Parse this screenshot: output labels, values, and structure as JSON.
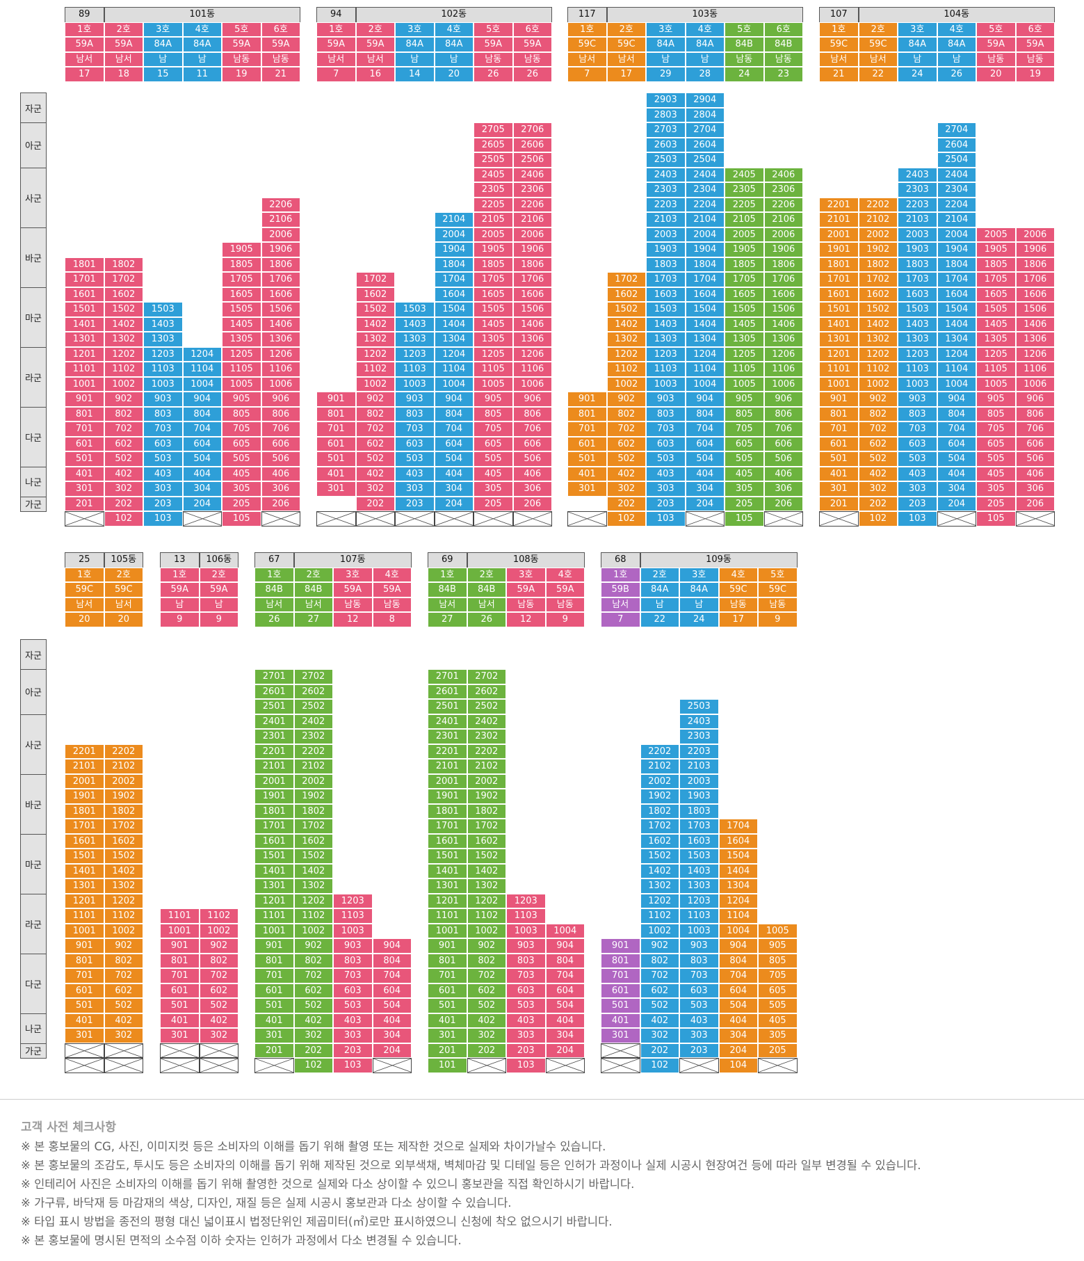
{
  "colors": {
    "pink": "#e8567a",
    "blue": "#2e9fd8",
    "orange": "#ec8b1d",
    "green": "#6cb33e",
    "purple": "#b066c2"
  },
  "grade_labels": [
    "자군",
    "아군",
    "사군",
    "바군",
    "마군",
    "라군",
    "다군",
    "나군",
    "가군"
  ],
  "buildings": [
    {
      "name": "101동",
      "count": "89",
      "units": [
        {
          "ho": "1호",
          "type": "59A",
          "dir": "남서",
          "cnt": "17",
          "color": "pink",
          "top": 18,
          "bottom": 2,
          "ground": "X"
        },
        {
          "ho": "2호",
          "type": "59A",
          "dir": "남서",
          "cnt": "18",
          "color": "pink",
          "top": 18,
          "bottom": 2,
          "ground": "102"
        },
        {
          "ho": "3호",
          "type": "84A",
          "dir": "남",
          "cnt": "15",
          "color": "blue",
          "top": 15,
          "bottom": 2,
          "ground": "103"
        },
        {
          "ho": "4호",
          "type": "84A",
          "dir": "남",
          "cnt": "11",
          "color": "blue",
          "top": 12,
          "bottom": 2,
          "ground": "X"
        },
        {
          "ho": "5호",
          "type": "59A",
          "dir": "남동",
          "cnt": "19",
          "color": "pink",
          "top": 19,
          "bottom": 2,
          "ground": "105"
        },
        {
          "ho": "6호",
          "type": "59A",
          "dir": "남동",
          "cnt": "21",
          "color": "pink",
          "top": 22,
          "bottom": 2,
          "ground": "X"
        }
      ]
    },
    {
      "name": "102동",
      "count": "94",
      "units": [
        {
          "ho": "1호",
          "type": "59A",
          "dir": "남서",
          "cnt": "7",
          "color": "pink",
          "top": 9,
          "bottom": 3,
          "ground": "X"
        },
        {
          "ho": "2호",
          "type": "59A",
          "dir": "남서",
          "cnt": "16",
          "color": "pink",
          "top": 17,
          "bottom": 2,
          "ground": "X"
        },
        {
          "ho": "3호",
          "type": "84A",
          "dir": "남",
          "cnt": "14",
          "color": "blue",
          "top": 15,
          "bottom": 2,
          "ground": "X"
        },
        {
          "ho": "4호",
          "type": "84A",
          "dir": "남",
          "cnt": "20",
          "color": "blue",
          "top": 21,
          "bottom": 2,
          "ground": "X"
        },
        {
          "ho": "5호",
          "type": "59A",
          "dir": "남동",
          "cnt": "26",
          "color": "pink",
          "top": 27,
          "bottom": 2,
          "ground": "X"
        },
        {
          "ho": "6호",
          "type": "59A",
          "dir": "남동",
          "cnt": "26",
          "color": "pink",
          "top": 27,
          "bottom": 2,
          "ground": "X"
        }
      ]
    },
    {
      "name": "103동",
      "count": "117",
      "units": [
        {
          "ho": "1호",
          "type": "59C",
          "dir": "남서",
          "cnt": "7",
          "color": "orange",
          "top": 9,
          "bottom": 3,
          "ground": "X"
        },
        {
          "ho": "2호",
          "type": "59C",
          "dir": "남서",
          "cnt": "17",
          "color": "orange",
          "top": 17,
          "bottom": 2,
          "ground": "102"
        },
        {
          "ho": "3호",
          "type": "84A",
          "dir": "남",
          "cnt": "29",
          "color": "blue",
          "top": 29,
          "bottom": 2,
          "ground": "103"
        },
        {
          "ho": "4호",
          "type": "84A",
          "dir": "남",
          "cnt": "28",
          "color": "blue",
          "top": 29,
          "bottom": 2,
          "ground": "X"
        },
        {
          "ho": "5호",
          "type": "84B",
          "dir": "남동",
          "cnt": "24",
          "color": "green",
          "top": 24,
          "bottom": 2,
          "ground": "105"
        },
        {
          "ho": "6호",
          "type": "84B",
          "dir": "남동",
          "cnt": "23",
          "color": "green",
          "top": 24,
          "bottom": 2,
          "ground": "X"
        }
      ]
    },
    {
      "name": "104동",
      "count": "107",
      "units": [
        {
          "ho": "1호",
          "type": "59C",
          "dir": "남서",
          "cnt": "21",
          "color": "orange",
          "top": 22,
          "bottom": 2,
          "ground": "X"
        },
        {
          "ho": "2호",
          "type": "59C",
          "dir": "남서",
          "cnt": "22",
          "color": "orange",
          "top": 22,
          "bottom": 2,
          "ground": "102"
        },
        {
          "ho": "3호",
          "type": "84A",
          "dir": "남",
          "cnt": "24",
          "color": "blue",
          "top": 24,
          "bottom": 2,
          "ground": "103"
        },
        {
          "ho": "4호",
          "type": "84A",
          "dir": "남",
          "cnt": "26",
          "color": "blue",
          "top": 27,
          "bottom": 2,
          "ground": "X"
        },
        {
          "ho": "5호",
          "type": "59A",
          "dir": "남동",
          "cnt": "20",
          "color": "pink",
          "top": 20,
          "bottom": 2,
          "ground": "105"
        },
        {
          "ho": "6호",
          "type": "59A",
          "dir": "남동",
          "cnt": "19",
          "color": "pink",
          "top": 20,
          "bottom": 2,
          "ground": "X"
        }
      ]
    },
    {
      "name": "105동",
      "count": "25",
      "units": [
        {
          "ho": "1호",
          "type": "59C",
          "dir": "남서",
          "cnt": "20",
          "color": "orange",
          "top": 22,
          "bottom": 3,
          "ground": "X",
          "ground2": "X"
        },
        {
          "ho": "2호",
          "type": "59C",
          "dir": "남서",
          "cnt": "20",
          "color": "orange",
          "top": 22,
          "bottom": 3,
          "ground": "X",
          "ground2": "X"
        }
      ]
    },
    {
      "name": "106동",
      "count": "13",
      "units": [
        {
          "ho": "1호",
          "type": "59A",
          "dir": "남",
          "cnt": "9",
          "color": "pink",
          "top": 11,
          "bottom": 3,
          "ground": "X",
          "ground2": "X"
        },
        {
          "ho": "2호",
          "type": "59A",
          "dir": "남",
          "cnt": "9",
          "color": "pink",
          "top": 11,
          "bottom": 3,
          "ground": "X",
          "ground2": "X"
        }
      ]
    },
    {
      "name": "107동",
      "count": "67",
      "units": [
        {
          "ho": "1호",
          "type": "84B",
          "dir": "남서",
          "cnt": "26",
          "color": "green",
          "top": 27,
          "bottom": 2,
          "ground": "X"
        },
        {
          "ho": "2호",
          "type": "84B",
          "dir": "남서",
          "cnt": "27",
          "color": "green",
          "top": 27,
          "bottom": 2,
          "ground": "102"
        },
        {
          "ho": "3호",
          "type": "59A",
          "dir": "남동",
          "cnt": "12",
          "color": "pink",
          "top": 12,
          "bottom": 2,
          "ground": "103"
        },
        {
          "ho": "4호",
          "type": "59A",
          "dir": "남동",
          "cnt": "8",
          "color": "pink",
          "top": 9,
          "bottom": 2,
          "ground": "X"
        }
      ]
    },
    {
      "name": "108동",
      "count": "69",
      "units": [
        {
          "ho": "1호",
          "type": "84B",
          "dir": "남서",
          "cnt": "27",
          "color": "green",
          "top": 27,
          "bottom": 2,
          "ground": "101"
        },
        {
          "ho": "2호",
          "type": "84B",
          "dir": "남서",
          "cnt": "26",
          "color": "green",
          "top": 27,
          "bottom": 2,
          "ground": "X"
        },
        {
          "ho": "3호",
          "type": "59A",
          "dir": "남동",
          "cnt": "12",
          "color": "pink",
          "top": 12,
          "bottom": 2,
          "ground": "103"
        },
        {
          "ho": "4호",
          "type": "59A",
          "dir": "남동",
          "cnt": "9",
          "color": "pink",
          "top": 10,
          "bottom": 2,
          "ground": "X"
        }
      ]
    },
    {
      "name": "109동",
      "count": "68",
      "units": [
        {
          "ho": "1호",
          "type": "59B",
          "dir": "남서",
          "cnt": "7",
          "color": "purple",
          "top": 9,
          "bottom": 3,
          "ground": "X",
          "ground2": "X"
        },
        {
          "ho": "2호",
          "type": "84A",
          "dir": "남",
          "cnt": "22",
          "color": "blue",
          "top": 22,
          "bottom": 3,
          "ground": "102",
          "ground2": "202"
        },
        {
          "ho": "3호",
          "type": "84A",
          "dir": "남",
          "cnt": "24",
          "color": "blue",
          "top": 25,
          "bottom": 3,
          "ground": "X",
          "ground2": "203"
        },
        {
          "ho": "4호",
          "type": "59C",
          "dir": "남동",
          "cnt": "17",
          "color": "orange",
          "top": 17,
          "bottom": 3,
          "ground": "104",
          "ground2": "204"
        },
        {
          "ho": "5호",
          "type": "59C",
          "dir": "남동",
          "cnt": "9",
          "color": "orange",
          "top": 10,
          "bottom": 3,
          "ground": "X",
          "ground2": "205"
        }
      ]
    }
  ],
  "notes": {
    "title": "고객 사전 체크사항",
    "items": [
      "※ 본 홍보물의 CG, 사진, 이미지컷 등은 소비자의 이해를 돕기 위해 촬영 또는 제작한 것으로 실제와 차이가날수 있습니다.",
      "※ 본 홍보물의 조감도, 투시도 등은 소비자의 이해를 돕기 위해 제작된 것으로 외부색채, 벽체마감 및 디테일 등은 인허가 과정이나 실제 시공시 현장여건 등에 따라 일부 변경될 수 있습니다.",
      "※ 인테리어 사진은 소비자의 이해를 돕기 위해 촬영한 것으로 실제와 다소 상이할 수 있으니 홍보관을 직접 확인하시기 바랍니다.",
      "※ 가구류, 바닥재 등 마감재의 색상, 디자인, 재질 등은 실제 시공시 홍보관과 다소 상이할 수 있습니다.",
      "※ 타입 표시 방법을 종전의 평형 대신 넓이표시 법정단위인 제곱미터(㎡)로만 표시하였으니 신청에 착오 없으시기 바랍니다.",
      "※ 본 홍보물에 명시된 면적의 소수점 이하 숫자는 인허가 과정에서 다소 변경될 수 있습니다."
    ]
  }
}
